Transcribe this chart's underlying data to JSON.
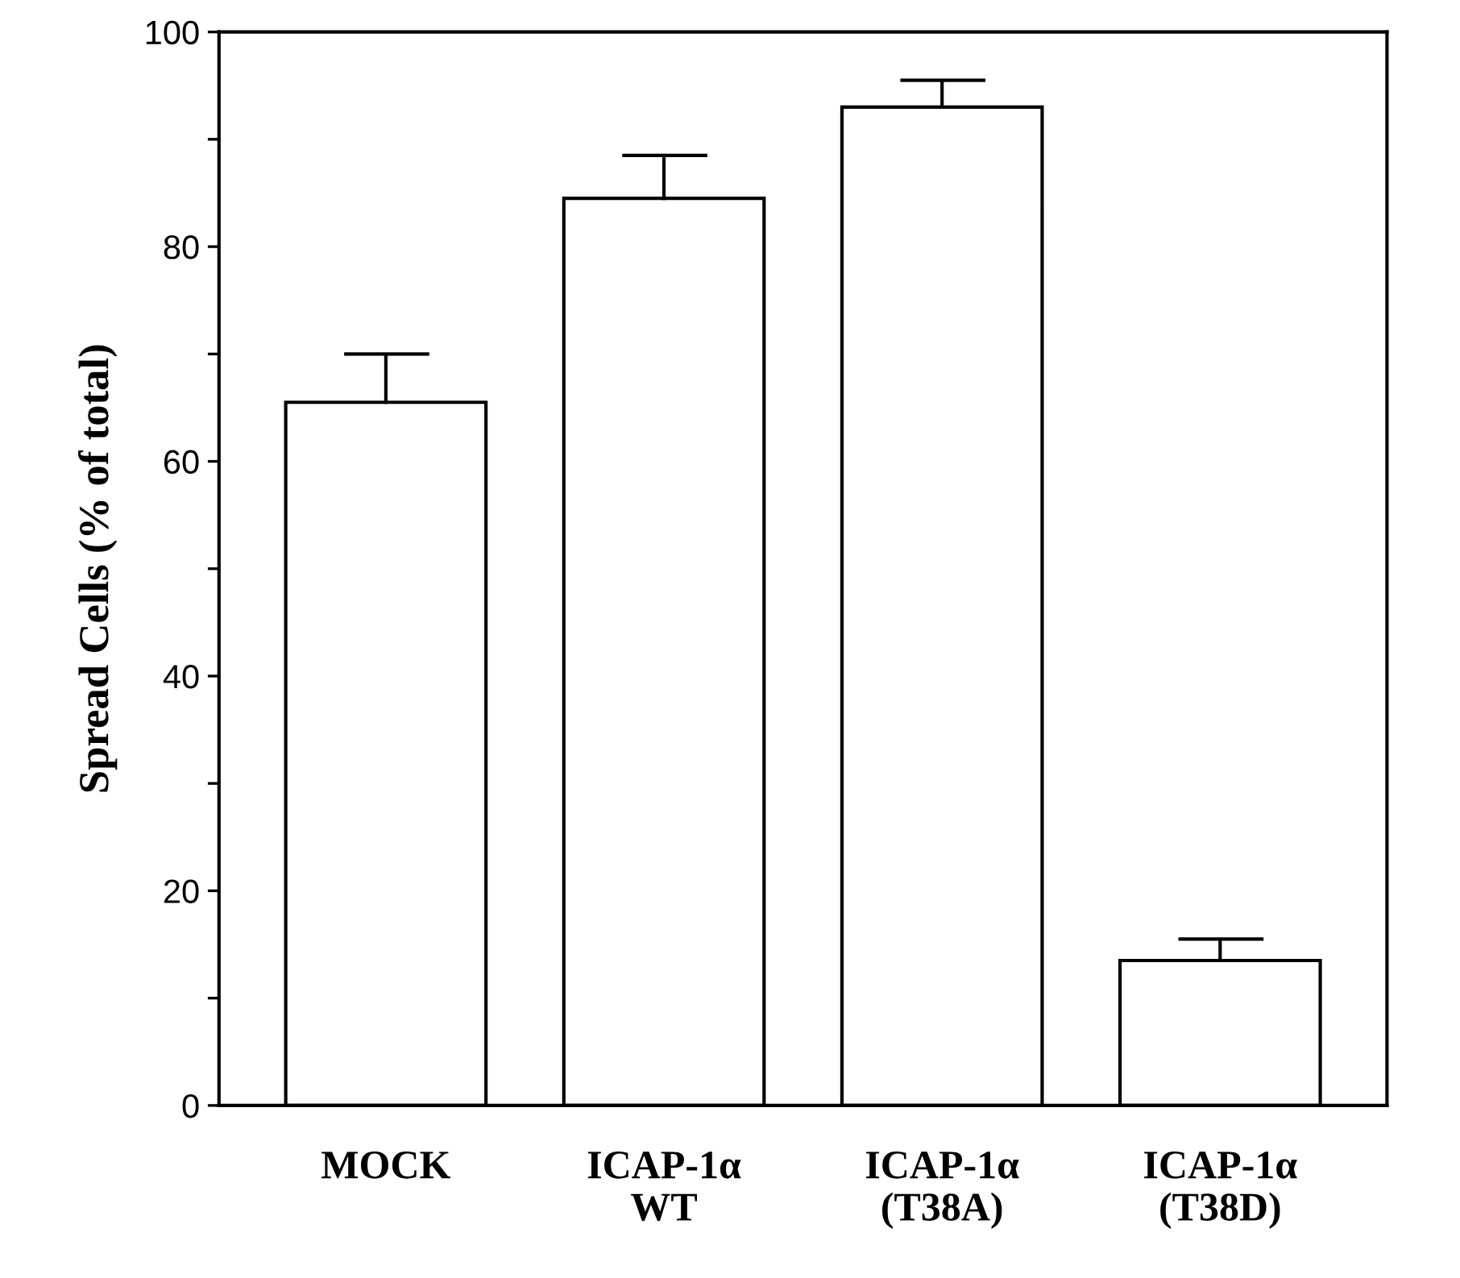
{
  "chart_data": {
    "type": "bar",
    "ylabel": "Spread Cells (% of total)",
    "categories": [
      "MOCK",
      "ICAP-1α\nWT",
      "ICAP-1α\n(T38A)",
      "ICAP-1α\n(T38D)"
    ],
    "values": [
      65.5,
      84.5,
      93,
      13.5
    ],
    "errors": [
      [
        65.5,
        70
      ],
      [
        84.5,
        88.5
      ],
      [
        93,
        95.5
      ],
      [
        13.5,
        15.5
      ]
    ],
    "color": "#ffffff",
    "ylim": [
      0,
      100
    ],
    "yticks": [
      0,
      {
        "value": 10,
        "label": null
      },
      20,
      {
        "value": 30,
        "label": null
      },
      40,
      {
        "value": 50,
        "label": null
      },
      60,
      {
        "value": 70,
        "label": null
      },
      80,
      {
        "value": 90,
        "label": null
      },
      100
    ],
    "grid": false
  }
}
